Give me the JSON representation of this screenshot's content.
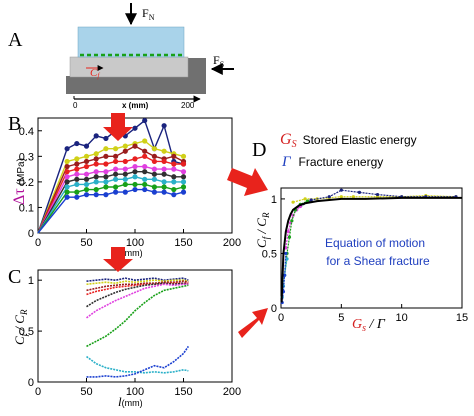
{
  "panels": {
    "A": {
      "label": "A",
      "normal_force": "F",
      "normal_force_sub": "N",
      "shear_force": "F",
      "shear_force_sub": "S",
      "crack_speed": "C",
      "crack_speed_sub": "f",
      "axis_start": "0",
      "axis_end": "200",
      "axis_label": "x (mm)"
    },
    "B": {
      "label": "B",
      "ylabel_symbol": "Δτ",
      "ylabel_unit": "(MPa)",
      "yticks": [
        "0",
        "0.1",
        "0.2",
        "0.3",
        "0.4"
      ],
      "xticks": [
        "0",
        "50",
        "100",
        "150",
        "200"
      ],
      "xlabel_symbol": "l",
      "xlabel_unit": "(mm)"
    },
    "C": {
      "label": "C",
      "ylabel": "C",
      "ylabel_sub1": "f",
      "ylabel_sub2": "R",
      "yticks": [
        "0",
        "0.5",
        "1"
      ],
      "xticks": [
        "0",
        "50",
        "100",
        "150",
        "200"
      ],
      "xlabel_symbol": "l",
      "xlabel_unit": "(mm)"
    },
    "D": {
      "label": "D",
      "legend_gs_symbol": "G",
      "legend_gs_sub": "S",
      "legend_gs_text": "Stored Elastic energy",
      "legend_gamma_symbol": "Γ",
      "legend_gamma_text": "Fracture energy",
      "yticks": [
        "0",
        "0.5",
        "1"
      ],
      "xticks": [
        "0",
        "5",
        "10",
        "15"
      ],
      "ylabel": "C",
      "ylabel_sub1": "f",
      "ylabel_sub2": "R",
      "xlabel_g": "G",
      "xlabel_g_sub": "s",
      "xlabel_gamma": "Γ",
      "annotation_line1": "Equation of motion",
      "annotation_line2": "for a Shear fracture"
    }
  },
  "colors": {
    "accent_red": "#e8231c",
    "annotation_blue": "#1f3fbf",
    "label_red": "#d42020",
    "label_magenta": "#b0109a",
    "block_top": "#a9d3ea",
    "block_bottom": "#c9c9c9",
    "base": "#707070",
    "dashed_green": "#18a018"
  },
  "chart_data": [
    {
      "panel": "B",
      "type": "line",
      "xlabel": "l(mm)",
      "ylabel": "Δτ (MPa)",
      "xlim": [
        0,
        200
      ],
      "ylim": [
        0,
        0.45
      ],
      "series": [
        {
          "color": "#1a237e",
          "x": [
            0,
            30,
            40,
            50,
            60,
            70,
            80,
            90,
            100,
            110,
            120,
            130,
            140,
            150
          ],
          "y": [
            0,
            0.33,
            0.35,
            0.34,
            0.38,
            0.37,
            0.4,
            0.38,
            0.41,
            0.44,
            0.33,
            0.42,
            0.28,
            0.27
          ]
        },
        {
          "color": "#d0d018",
          "x": [
            0,
            30,
            40,
            50,
            60,
            70,
            80,
            90,
            100,
            110,
            120,
            130,
            140,
            150
          ],
          "y": [
            0,
            0.28,
            0.29,
            0.3,
            0.31,
            0.33,
            0.33,
            0.34,
            0.35,
            0.36,
            0.33,
            0.32,
            0.31,
            0.3
          ]
        },
        {
          "color": "#9a1d1d",
          "x": [
            0,
            30,
            40,
            50,
            60,
            70,
            80,
            90,
            100,
            110,
            120,
            130,
            140,
            150
          ],
          "y": [
            0,
            0.26,
            0.27,
            0.28,
            0.29,
            0.3,
            0.3,
            0.32,
            0.34,
            0.32,
            0.3,
            0.29,
            0.3,
            0.28
          ]
        },
        {
          "color": "#e82020",
          "x": [
            0,
            30,
            40,
            50,
            60,
            70,
            80,
            90,
            100,
            110,
            120,
            130,
            140,
            150
          ],
          "y": [
            0,
            0.24,
            0.25,
            0.26,
            0.27,
            0.27,
            0.28,
            0.28,
            0.29,
            0.3,
            0.28,
            0.28,
            0.27,
            0.27
          ]
        },
        {
          "color": "#e040e0",
          "x": [
            0,
            30,
            40,
            50,
            60,
            70,
            80,
            90,
            100,
            110,
            120,
            130,
            140,
            150
          ],
          "y": [
            0,
            0.22,
            0.23,
            0.23,
            0.24,
            0.24,
            0.25,
            0.25,
            0.26,
            0.26,
            0.25,
            0.25,
            0.25,
            0.24
          ]
        },
        {
          "color": "#303030",
          "x": [
            0,
            30,
            40,
            50,
            60,
            70,
            80,
            90,
            100,
            110,
            120,
            130,
            140,
            150
          ],
          "y": [
            0,
            0.2,
            0.21,
            0.21,
            0.22,
            0.22,
            0.23,
            0.23,
            0.24,
            0.24,
            0.23,
            0.23,
            0.22,
            0.22
          ]
        },
        {
          "color": "#2ab0c8",
          "x": [
            0,
            30,
            40,
            50,
            60,
            70,
            80,
            90,
            100,
            110,
            120,
            130,
            140,
            150
          ],
          "y": [
            0,
            0.18,
            0.19,
            0.19,
            0.2,
            0.2,
            0.21,
            0.21,
            0.22,
            0.21,
            0.21,
            0.2,
            0.2,
            0.2
          ]
        },
        {
          "color": "#18a018",
          "x": [
            0,
            30,
            40,
            50,
            60,
            70,
            80,
            90,
            100,
            110,
            120,
            130,
            140,
            150
          ],
          "y": [
            0,
            0.16,
            0.16,
            0.17,
            0.17,
            0.18,
            0.18,
            0.19,
            0.19,
            0.19,
            0.18,
            0.18,
            0.17,
            0.18
          ]
        },
        {
          "color": "#1a3fd0",
          "x": [
            0,
            30,
            40,
            50,
            60,
            70,
            80,
            90,
            100,
            110,
            120,
            130,
            140,
            150
          ],
          "y": [
            0,
            0.14,
            0.14,
            0.15,
            0.15,
            0.15,
            0.16,
            0.16,
            0.17,
            0.17,
            0.16,
            0.16,
            0.15,
            0.16
          ]
        }
      ]
    },
    {
      "panel": "C",
      "type": "line",
      "xlabel": "l(mm)",
      "ylabel": "Cf/CR",
      "xlim": [
        0,
        200
      ],
      "ylim": [
        0,
        1.1
      ],
      "series": [
        {
          "color": "#1a237e",
          "x": [
            50,
            60,
            70,
            80,
            90,
            100,
            110,
            120,
            130,
            140,
            150,
            155
          ],
          "y": [
            0.99,
            1.0,
            1.01,
            1.0,
            1.02,
            1.0,
            1.01,
            1.02,
            1.0,
            1.01,
            1.02,
            1.0
          ]
        },
        {
          "color": "#d0d018",
          "x": [
            50,
            60,
            70,
            80,
            90,
            100,
            110,
            120,
            130,
            140,
            150,
            155
          ],
          "y": [
            0.96,
            0.97,
            0.98,
            0.97,
            0.99,
            0.98,
            0.99,
            1.0,
            0.99,
            1.0,
            1.0,
            0.99
          ]
        },
        {
          "color": "#9a1d1d",
          "x": [
            50,
            60,
            70,
            80,
            90,
            100,
            110,
            120,
            130,
            140,
            150,
            155
          ],
          "y": [
            0.9,
            0.92,
            0.94,
            0.95,
            0.96,
            0.96,
            0.97,
            0.97,
            0.98,
            0.98,
            0.99,
            0.98
          ]
        },
        {
          "color": "#e82020",
          "x": [
            50,
            60,
            70,
            80,
            90,
            100,
            110,
            120,
            130,
            140,
            150,
            155
          ],
          "y": [
            0.86,
            0.89,
            0.91,
            0.93,
            0.94,
            0.95,
            0.96,
            0.96,
            0.97,
            0.97,
            0.97,
            0.97
          ]
        },
        {
          "color": "#303030",
          "x": [
            50,
            60,
            70,
            80,
            90,
            100,
            110,
            120,
            130,
            140,
            150,
            155
          ],
          "y": [
            0.74,
            0.8,
            0.84,
            0.88,
            0.91,
            0.93,
            0.95,
            0.96,
            0.97,
            0.96,
            0.97,
            0.96
          ]
        },
        {
          "color": "#e040e0",
          "x": [
            50,
            60,
            70,
            80,
            90,
            100,
            110,
            120,
            130,
            140,
            150,
            155
          ],
          "y": [
            0.63,
            0.7,
            0.75,
            0.8,
            0.84,
            0.88,
            0.92,
            0.94,
            0.96,
            0.95,
            0.96,
            0.96
          ]
        },
        {
          "color": "#18a018",
          "x": [
            50,
            60,
            70,
            80,
            90,
            100,
            110,
            120,
            130,
            140,
            150,
            155
          ],
          "y": [
            0.35,
            0.4,
            0.45,
            0.52,
            0.6,
            0.7,
            0.78,
            0.85,
            0.9,
            0.92,
            0.94,
            0.95
          ]
        },
        {
          "color": "#2ab0c8",
          "x": [
            50,
            60,
            70,
            80,
            90,
            100,
            110,
            120,
            130,
            140,
            150,
            155
          ],
          "y": [
            0.25,
            0.18,
            0.14,
            0.12,
            0.1,
            0.1,
            0.09,
            0.1,
            0.09,
            0.1,
            0.12,
            0.11
          ]
        },
        {
          "color": "#1a3fd0",
          "x": [
            50,
            60,
            70,
            80,
            90,
            100,
            110,
            120,
            130,
            140,
            150,
            155
          ],
          "y": [
            0.05,
            0.05,
            0.06,
            0.05,
            0.06,
            0.08,
            0.12,
            0.16,
            0.14,
            0.2,
            0.28,
            0.35
          ]
        }
      ]
    },
    {
      "panel": "D",
      "type": "scatter",
      "xlabel": "Gs/Γ",
      "ylabel": "Cf/CR",
      "xlim": [
        0,
        15
      ],
      "ylim": [
        0,
        1.1
      ],
      "series": [
        {
          "color": "#d0d018",
          "x": [
            1,
            2,
            3,
            4,
            5,
            6,
            8,
            10,
            12,
            14.5
          ],
          "y": [
            0.97,
            1.0,
            1.0,
            1.01,
            1.02,
            1.02,
            1.02,
            1.02,
            1.03,
            1.02
          ]
        },
        {
          "color": "#1a237e",
          "x": [
            1.2,
            2.5,
            4,
            5,
            6.5,
            8,
            10,
            12,
            14.5
          ],
          "y": [
            0.9,
            0.99,
            1.02,
            1.08,
            1.06,
            1.04,
            1.02,
            1.02,
            1.02
          ]
        },
        {
          "color": "#e040e0",
          "x": [
            0.4,
            0.6,
            0.8,
            1.0,
            1.3,
            1.6
          ],
          "y": [
            0.55,
            0.7,
            0.78,
            0.85,
            0.9,
            0.93
          ]
        },
        {
          "color": "#18a018",
          "x": [
            0.3,
            0.5,
            0.7,
            0.9,
            1.2,
            1.6,
            2.2
          ],
          "y": [
            0.3,
            0.5,
            0.65,
            0.8,
            0.9,
            0.95,
            0.98
          ]
        },
        {
          "color": "#2ab0c8",
          "x": [
            0.1,
            0.2,
            0.3,
            0.5
          ],
          "y": [
            0.1,
            0.2,
            0.3,
            0.45
          ]
        },
        {
          "color": "#1a3fd0",
          "x": [
            0.1,
            0.2,
            0.3,
            0.4
          ],
          "y": [
            0.05,
            0.15,
            0.3,
            0.5
          ]
        }
      ],
      "model_curve": {
        "color": "#000000",
        "x": [
          0.05,
          0.2,
          0.4,
          0.6,
          0.8,
          1.0,
          1.5,
          2,
          3,
          4,
          5,
          7,
          10,
          15
        ],
        "y": [
          0.05,
          0.5,
          0.7,
          0.8,
          0.86,
          0.9,
          0.94,
          0.96,
          0.98,
          0.99,
          1.0,
          1.0,
          1.01,
          1.01
        ]
      }
    }
  ]
}
